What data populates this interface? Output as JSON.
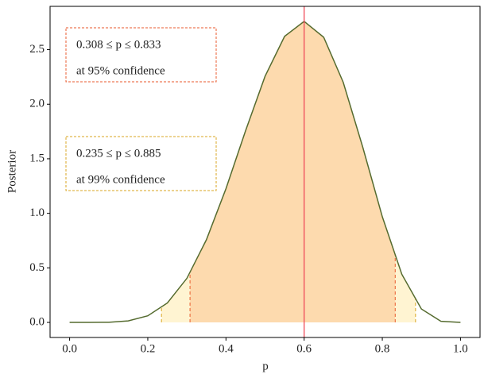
{
  "chart_data": {
    "type": "area",
    "x_label": "p",
    "y_label": "Posterior",
    "x": [
      0,
      0.05,
      0.1,
      0.15,
      0.2,
      0.25,
      0.3,
      0.35,
      0.4,
      0.45,
      0.5,
      0.55,
      0.6,
      0.65,
      0.7,
      0.75,
      0.8,
      0.85,
      0.9,
      0.95,
      1.0
    ],
    "values": [
      0,
      3e-05,
      0.0015,
      0.0137,
      0.0606,
      0.178,
      0.404,
      0.758,
      1.226,
      1.755,
      2.256,
      2.622,
      2.759,
      2.614,
      2.201,
      1.606,
      0.969,
      0.441,
      0.123,
      0.0106,
      0
    ],
    "color": "#556b2f",
    "mode": 0.6,
    "mode_color": "#ef4a5a",
    "intervals": [
      {
        "lower": 0.235,
        "upper": 0.885,
        "text": "0.235 ≤ p ≤ 0.885",
        "confidence": "at 99% confidence",
        "color": "#d9a520",
        "fill": "#fff4d2"
      },
      {
        "lower": 0.308,
        "upper": 0.833,
        "text": "0.308 ≤ p ≤ 0.833",
        "confidence": "at 95% confidence",
        "color": "#ea5a2c",
        "fill": "#fddaae"
      }
    ],
    "xlim": [
      -0.05,
      1.05
    ],
    "ylim": [
      -0.138,
      2.897
    ],
    "xticks": [
      {
        "value": 0,
        "label": "0.0"
      },
      0.2,
      0.4,
      0.6,
      0.8,
      {
        "value": 1.0,
        "label": "1.0"
      }
    ],
    "yticks": [
      {
        "value": 0,
        "label": "0.0"
      },
      0.5,
      {
        "value": 1.0,
        "label": "1.0"
      },
      1.5,
      {
        "value": 2.0,
        "label": "2.0"
      },
      2.5
    ]
  }
}
